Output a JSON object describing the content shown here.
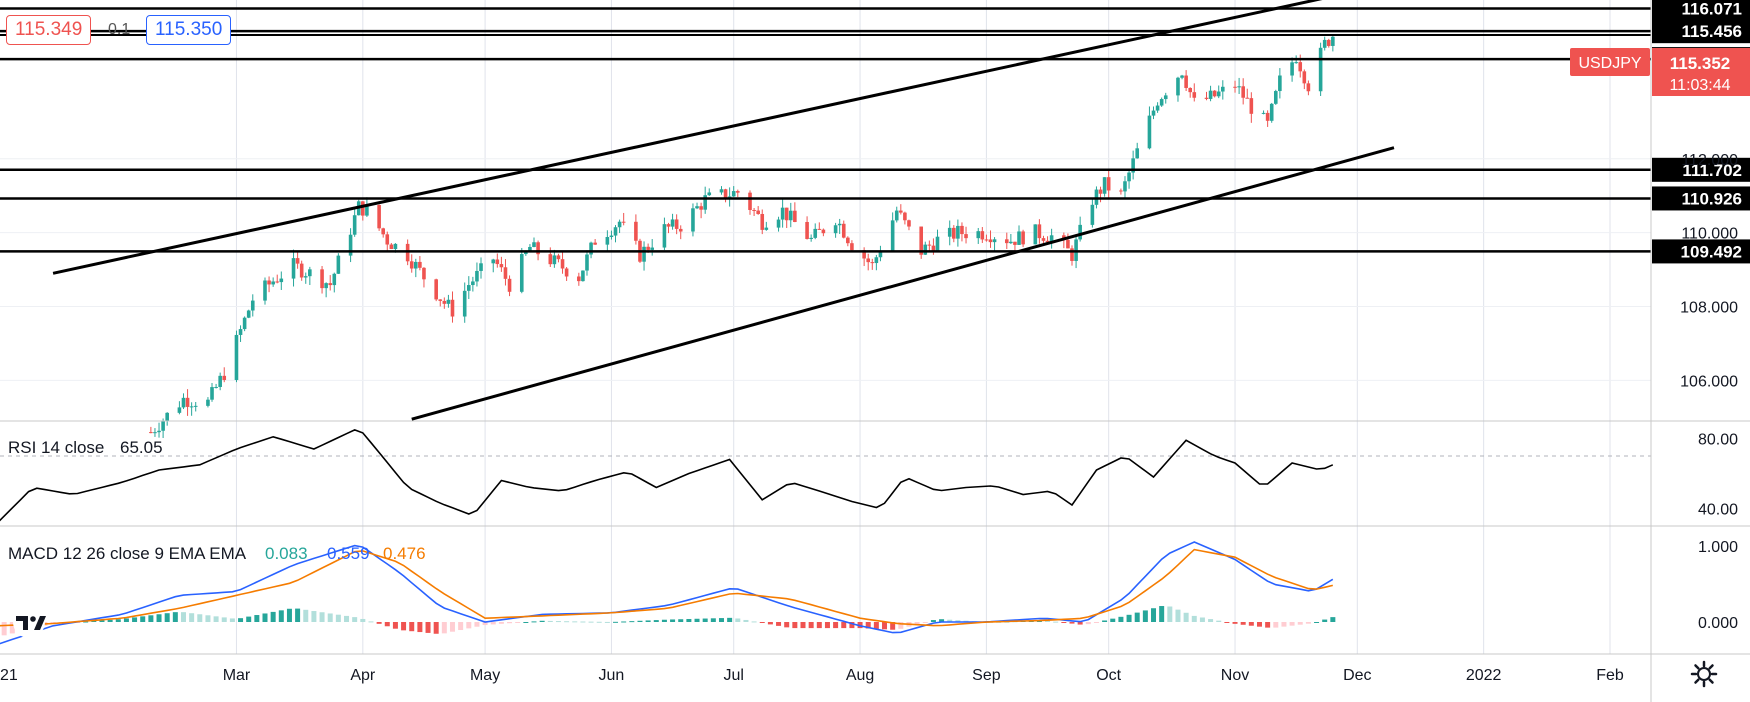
{
  "quote": {
    "bid": "115.349",
    "spread": "0.1",
    "ask": "115.350"
  },
  "colors": {
    "up": "#26a69a",
    "down": "#ef5350",
    "rsi": "#000000",
    "macd": "#2962ff",
    "signal": "#f57c00",
    "hist_up": "#26a69a",
    "hist_up_light": "#b2dfdb",
    "hist_down": "#ef5350",
    "hist_down_light": "#ffcdd2"
  },
  "icons": {
    "logo": "tradingview-logo-icon",
    "settings": "gear-icon"
  },
  "chart_data": [
    {
      "type": "candlestick",
      "symbol": "USDJPY",
      "last_price": "115.352",
      "countdown": "11:03:44",
      "x_labels": [
        "21",
        "Mar",
        "Apr",
        "May",
        "Jun",
        "Jul",
        "Aug",
        "Sep",
        "Oct",
        "Nov",
        "Dec",
        "2022",
        "Feb"
      ],
      "y_ticks": [
        106.0,
        108.0,
        110.0,
        112.0
      ],
      "y_tick_labels": [
        "106.000",
        "108.000",
        "110.000",
        "112.000"
      ],
      "ylim": [
        104.9,
        116.3
      ],
      "horizontal_levels": [
        "116.071",
        "115.456",
        "115.352",
        "114.700",
        "111.702",
        "110.926",
        "109.492"
      ],
      "trendlines": [
        {
          "from": [
            "2021-01-15",
            108.9
          ],
          "to": [
            "2021-11-27",
            116.45
          ]
        },
        {
          "from": [
            "2021-04-13",
            104.95
          ],
          "to": [
            "2021-12-10",
            112.3
          ]
        }
      ],
      "close_path": [
        [
          "2021-02-08",
          104.6
        ],
        [
          "2021-02-16",
          105.5
        ],
        [
          "2021-02-22",
          105.4
        ],
        [
          "2021-02-26",
          106.2
        ],
        [
          "2021-03-05",
          108.2
        ],
        [
          "2021-03-10",
          108.7
        ],
        [
          "2021-03-15",
          109.1
        ],
        [
          "2021-03-19",
          108.9
        ],
        [
          "2021-03-24",
          108.6
        ],
        [
          "2021-03-31",
          110.7
        ],
        [
          "2021-04-02",
          110.6
        ],
        [
          "2021-04-07",
          109.8
        ],
        [
          "2021-04-12",
          109.4
        ],
        [
          "2021-04-16",
          108.8
        ],
        [
          "2021-04-21",
          108.1
        ],
        [
          "2021-04-23",
          107.9
        ],
        [
          "2021-04-27",
          108.6
        ],
        [
          "2021-05-03",
          109.3
        ],
        [
          "2021-05-07",
          108.6
        ],
        [
          "2021-05-12",
          109.6
        ],
        [
          "2021-05-18",
          109.2
        ],
        [
          "2021-05-24",
          108.8
        ],
        [
          "2021-05-28",
          109.8
        ],
        [
          "2021-06-03",
          110.3
        ],
        [
          "2021-06-08",
          109.4
        ],
        [
          "2021-06-14",
          110.1
        ],
        [
          "2021-06-18",
          110.2
        ],
        [
          "2021-06-24",
          110.9
        ],
        [
          "2021-07-02",
          111.1
        ],
        [
          "2021-07-08",
          110.3
        ],
        [
          "2021-07-13",
          110.6
        ],
        [
          "2021-07-20",
          109.8
        ],
        [
          "2021-07-26",
          110.4
        ],
        [
          "2021-07-30",
          109.7
        ],
        [
          "2021-08-04",
          109.1
        ],
        [
          "2021-08-10",
          110.6
        ],
        [
          "2021-08-16",
          109.5
        ],
        [
          "2021-08-20",
          109.8
        ],
        [
          "2021-08-25",
          110.0
        ],
        [
          "2021-09-01",
          110.0
        ],
        [
          "2021-09-07",
          109.8
        ],
        [
          "2021-09-13",
          110.0
        ],
        [
          "2021-09-17",
          109.9
        ],
        [
          "2021-09-22",
          109.4
        ],
        [
          "2021-09-27",
          110.9
        ],
        [
          "2021-09-30",
          111.3
        ],
        [
          "2021-10-04",
          111.0
        ],
        [
          "2021-10-08",
          112.2
        ],
        [
          "2021-10-13",
          113.6
        ],
        [
          "2021-10-19",
          114.4
        ],
        [
          "2021-10-22",
          113.5
        ],
        [
          "2021-10-27",
          113.7
        ],
        [
          "2021-11-01",
          114.0
        ],
        [
          "2021-11-05",
          113.4
        ],
        [
          "2021-11-09",
          112.9
        ],
        [
          "2021-11-12",
          114.1
        ],
        [
          "2021-11-16",
          114.8
        ],
        [
          "2021-11-19",
          114.0
        ],
        [
          "2021-11-23",
          115.1
        ],
        [
          "2021-11-25",
          115.35
        ]
      ]
    },
    {
      "type": "line",
      "title": "RSI 14 close",
      "value": "65.05",
      "y_tick_labels": [
        "80.00",
        "40.00"
      ],
      "y_ticks": [
        80,
        40
      ],
      "ylim": [
        30,
        90
      ],
      "bands": [
        70,
        30
      ],
      "path": [
        [
          "2021-01-01",
          31
        ],
        [
          "2021-01-10",
          52
        ],
        [
          "2021-01-20",
          48
        ],
        [
          "2021-02-01",
          55
        ],
        [
          "2021-02-10",
          62
        ],
        [
          "2021-02-20",
          65
        ],
        [
          "2021-03-01",
          74
        ],
        [
          "2021-03-10",
          81
        ],
        [
          "2021-03-20",
          74
        ],
        [
          "2021-03-31",
          86
        ],
        [
          "2021-04-05",
          72
        ],
        [
          "2021-04-12",
          52
        ],
        [
          "2021-04-20",
          43
        ],
        [
          "2021-04-28",
          36
        ],
        [
          "2021-05-05",
          56
        ],
        [
          "2021-05-12",
          52
        ],
        [
          "2021-05-20",
          50
        ],
        [
          "2021-05-28",
          56
        ],
        [
          "2021-06-05",
          61
        ],
        [
          "2021-06-12",
          52
        ],
        [
          "2021-06-20",
          60
        ],
        [
          "2021-06-30",
          68
        ],
        [
          "2021-07-08",
          45
        ],
        [
          "2021-07-15",
          55
        ],
        [
          "2021-07-22",
          50
        ],
        [
          "2021-07-30",
          44
        ],
        [
          "2021-08-06",
          40
        ],
        [
          "2021-08-12",
          58
        ],
        [
          "2021-08-20",
          50
        ],
        [
          "2021-08-27",
          52
        ],
        [
          "2021-09-03",
          53
        ],
        [
          "2021-09-10",
          48
        ],
        [
          "2021-09-17",
          50
        ],
        [
          "2021-09-22",
          42
        ],
        [
          "2021-09-28",
          62
        ],
        [
          "2021-10-05",
          70
        ],
        [
          "2021-10-12",
          58
        ],
        [
          "2021-10-20",
          79
        ],
        [
          "2021-10-27",
          70
        ],
        [
          "2021-11-01",
          66
        ],
        [
          "2021-11-08",
          52
        ],
        [
          "2021-11-15",
          66
        ],
        [
          "2021-11-22",
          62
        ],
        [
          "2021-11-25",
          65
        ]
      ]
    },
    {
      "type": "macd",
      "title": "MACD 12 26 close 9 EMA EMA",
      "histogram_value": "0.083",
      "macd_value": "0.559",
      "signal_value": "0.476",
      "y_tick_labels": [
        "1.000",
        "0.000"
      ],
      "y_ticks": [
        1.0,
        0.0
      ],
      "ylim": [
        -0.42,
        1.26
      ],
      "macd": [
        [
          "2021-01-01",
          -0.3
        ],
        [
          "2021-01-15",
          -0.05
        ],
        [
          "2021-02-01",
          0.1
        ],
        [
          "2021-02-15",
          0.35
        ],
        [
          "2021-03-01",
          0.4
        ],
        [
          "2021-03-15",
          0.75
        ],
        [
          "2021-03-31",
          1.02
        ],
        [
          "2021-04-10",
          0.65
        ],
        [
          "2021-04-20",
          0.2
        ],
        [
          "2021-05-01",
          0.0
        ],
        [
          "2021-05-15",
          0.1
        ],
        [
          "2021-06-01",
          0.12
        ],
        [
          "2021-06-15",
          0.22
        ],
        [
          "2021-07-01",
          0.45
        ],
        [
          "2021-07-15",
          0.2
        ],
        [
          "2021-08-01",
          -0.05
        ],
        [
          "2021-08-10",
          -0.15
        ],
        [
          "2021-08-20",
          0.0
        ],
        [
          "2021-09-01",
          0.0
        ],
        [
          "2021-09-15",
          0.05
        ],
        [
          "2021-09-25",
          0.0
        ],
        [
          "2021-10-05",
          0.32
        ],
        [
          "2021-10-15",
          0.88
        ],
        [
          "2021-10-22",
          1.05
        ],
        [
          "2021-11-01",
          0.82
        ],
        [
          "2021-11-10",
          0.5
        ],
        [
          "2021-11-20",
          0.4
        ],
        [
          "2021-11-25",
          0.56
        ]
      ],
      "signal": [
        [
          "2021-01-01",
          -0.05
        ],
        [
          "2021-01-15",
          -0.02
        ],
        [
          "2021-02-01",
          0.05
        ],
        [
          "2021-02-15",
          0.18
        ],
        [
          "2021-03-01",
          0.35
        ],
        [
          "2021-03-15",
          0.52
        ],
        [
          "2021-03-31",
          0.95
        ],
        [
          "2021-04-10",
          0.78
        ],
        [
          "2021-04-20",
          0.4
        ],
        [
          "2021-05-01",
          0.05
        ],
        [
          "2021-05-15",
          0.08
        ],
        [
          "2021-06-01",
          0.12
        ],
        [
          "2021-06-15",
          0.18
        ],
        [
          "2021-07-01",
          0.38
        ],
        [
          "2021-07-15",
          0.3
        ],
        [
          "2021-08-01",
          0.05
        ],
        [
          "2021-08-10",
          -0.02
        ],
        [
          "2021-08-20",
          -0.05
        ],
        [
          "2021-09-01",
          0.0
        ],
        [
          "2021-09-15",
          0.02
        ],
        [
          "2021-09-25",
          0.05
        ],
        [
          "2021-10-05",
          0.22
        ],
        [
          "2021-10-15",
          0.6
        ],
        [
          "2021-10-22",
          0.95
        ],
        [
          "2021-11-01",
          0.85
        ],
        [
          "2021-11-10",
          0.6
        ],
        [
          "2021-11-20",
          0.42
        ],
        [
          "2021-11-25",
          0.48
        ]
      ]
    }
  ]
}
